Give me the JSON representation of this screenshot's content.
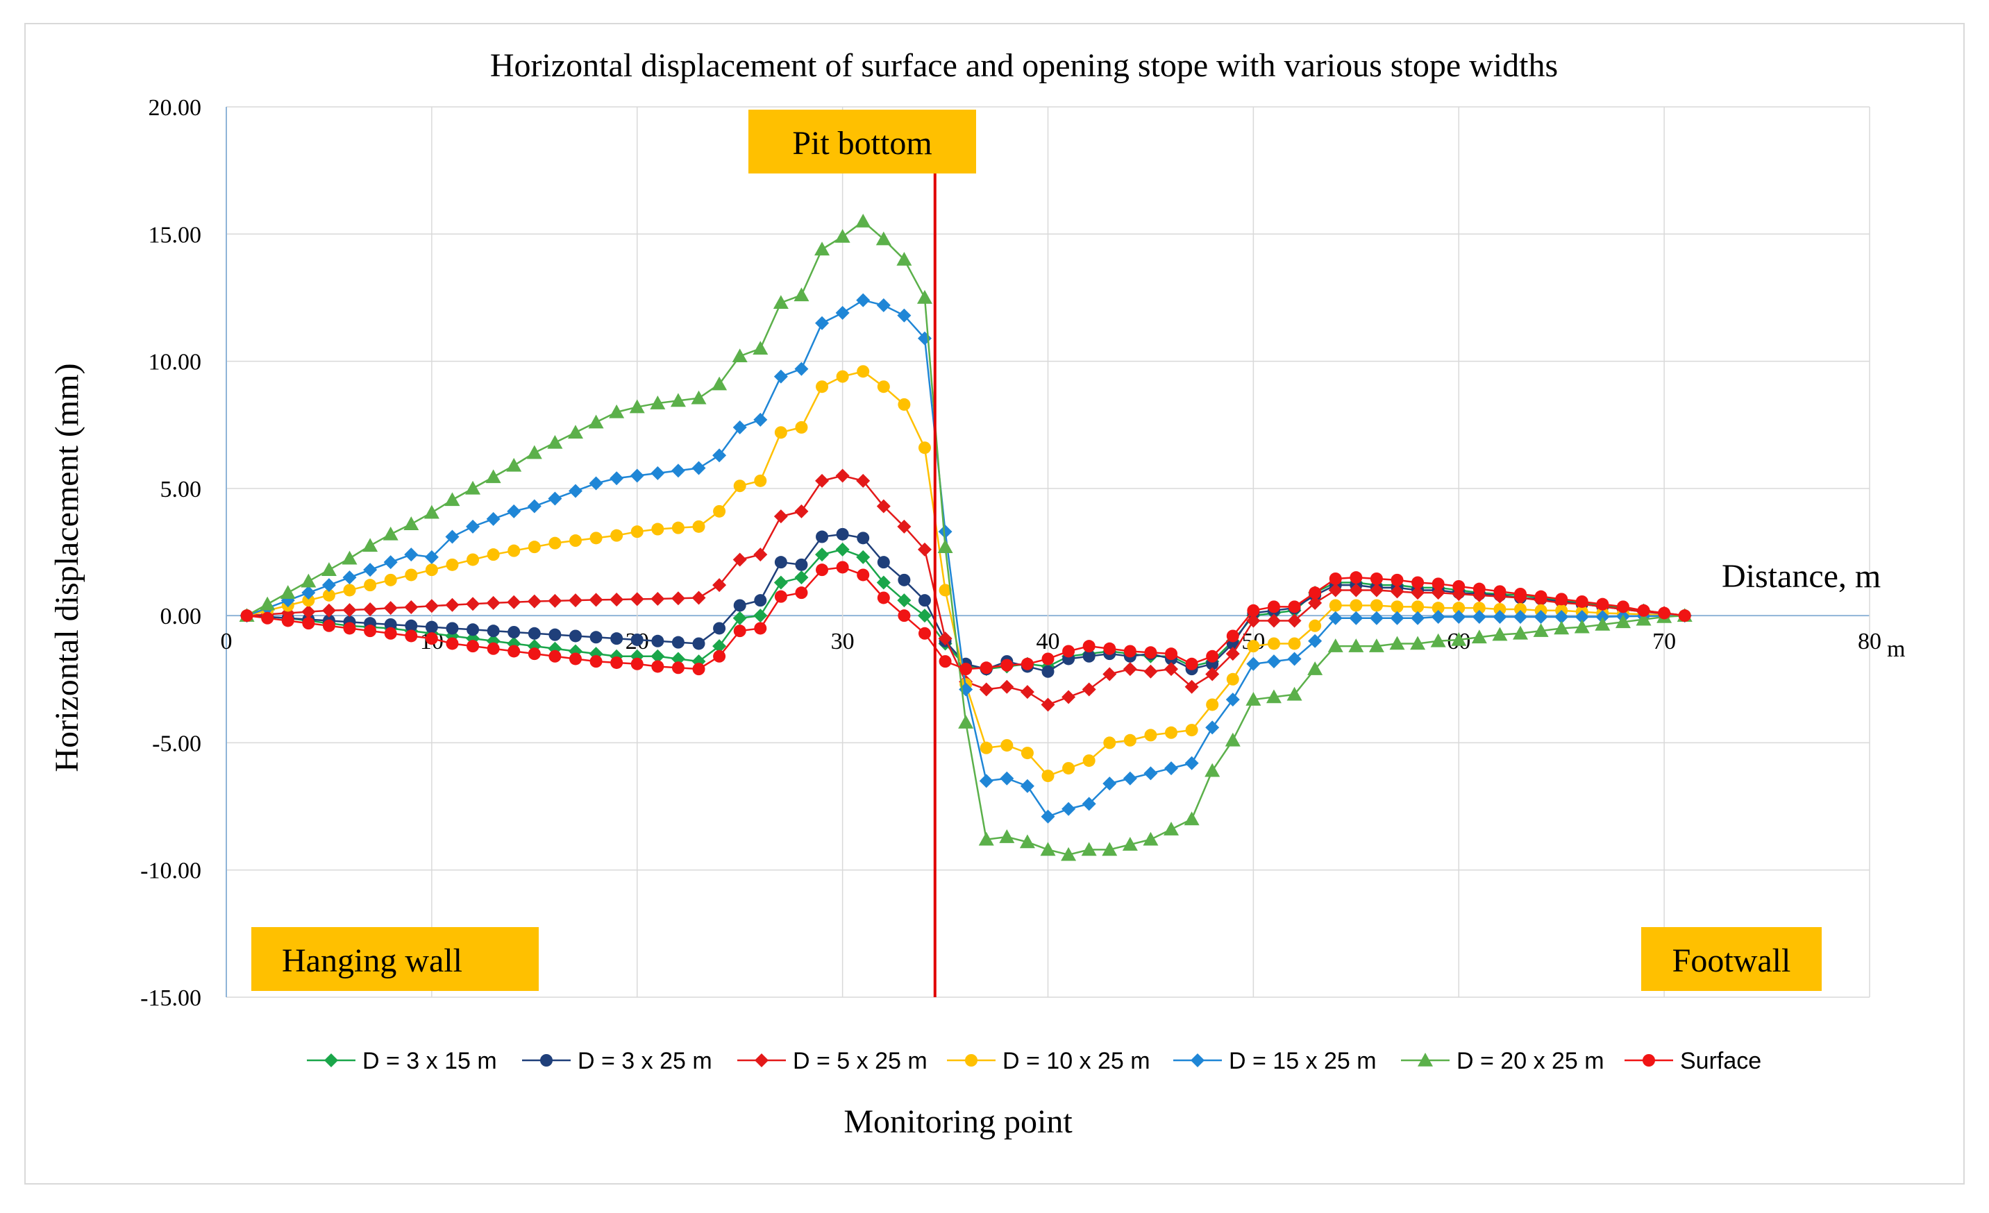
{
  "chart_data": {
    "type": "line",
    "title": "Horizontal displacement of surface and opening stope with various stope widths",
    "xlabel": "Monitoring point",
    "ylabel": "Horizontal displacement (mm)",
    "x_axis_name": "Distance, m",
    "x_unit_label": "m",
    "xlim": [
      0,
      80
    ],
    "ylim": [
      -15,
      20
    ],
    "x_ticks": [
      0,
      10,
      20,
      30,
      40,
      50,
      60,
      70,
      80
    ],
    "y_ticks": [
      -15,
      -10,
      -5,
      0,
      5,
      10,
      15,
      20
    ],
    "x_tick_labels": [
      "0",
      "10",
      "20",
      "30",
      "40",
      "50",
      "60",
      "70",
      "80"
    ],
    "y_tick_labels": [
      "-15.00",
      "-10.00",
      "-5.00",
      "0.00",
      "5.00",
      "10.00",
      "15.00",
      "20.00"
    ],
    "grid": true,
    "legend_position": "bottom",
    "vertical_marker": {
      "x": 34.5,
      "color": "#e00000"
    },
    "annotations": {
      "pit_bottom": "Pit bottom",
      "hanging_wall": "Hanging wall",
      "footwall": "Footwall"
    },
    "series": [
      {
        "name": "D = 3 x 15  m",
        "color": "#1aa64a",
        "marker": "diamond",
        "x": [
          1,
          2,
          3,
          4,
          5,
          6,
          7,
          8,
          9,
          10,
          11,
          12,
          13,
          14,
          15,
          16,
          17,
          18,
          19,
          20,
          21,
          22,
          23,
          24,
          25,
          26,
          27,
          28,
          29,
          30,
          31,
          32,
          33,
          34,
          35,
          36,
          37,
          38,
          39,
          40,
          41,
          42,
          43,
          44,
          45,
          46,
          47,
          48,
          49,
          50,
          51,
          52,
          53,
          54,
          55,
          56,
          57,
          58,
          59,
          60,
          61,
          62,
          63,
          64,
          65,
          66,
          67,
          68,
          69,
          70,
          71
        ],
        "values": [
          0,
          -0.05,
          -0.1,
          -0.2,
          -0.3,
          -0.4,
          -0.45,
          -0.5,
          -0.6,
          -0.7,
          -0.8,
          -0.9,
          -1,
          -1.1,
          -1.2,
          -1.3,
          -1.4,
          -1.5,
          -1.6,
          -1.6,
          -1.6,
          -1.7,
          -1.8,
          -1.2,
          -0.1,
          0,
          1.3,
          1.5,
          2.4,
          2.6,
          2.3,
          1.3,
          0.6,
          0,
          -1.1,
          -2,
          -2.1,
          -2,
          -1.9,
          -2,
          -1.6,
          -1.5,
          -1.4,
          -1.5,
          -1.6,
          -1.6,
          -2,
          -1.8,
          -1,
          0,
          0.1,
          0.2,
          0.9,
          1.3,
          1.3,
          1.2,
          1.2,
          1.1,
          1.1,
          1,
          0.9,
          0.85,
          0.8,
          0.7,
          0.6,
          0.5,
          0.4,
          0.3,
          0.2,
          0.1,
          0
        ]
      },
      {
        "name": "D = 3 x 25 m",
        "color": "#1f3f7a",
        "marker": "circle",
        "x": [
          1,
          2,
          3,
          4,
          5,
          6,
          7,
          8,
          9,
          10,
          11,
          12,
          13,
          14,
          15,
          16,
          17,
          18,
          19,
          20,
          21,
          22,
          23,
          24,
          25,
          26,
          27,
          28,
          29,
          30,
          31,
          32,
          33,
          34,
          35,
          36,
          37,
          38,
          39,
          40,
          41,
          42,
          43,
          44,
          45,
          46,
          47,
          48,
          49,
          50,
          51,
          52,
          53,
          54,
          55,
          56,
          57,
          58,
          59,
          60,
          61,
          62,
          63,
          64,
          65,
          66,
          67,
          68,
          69,
          70,
          71
        ],
        "values": [
          0,
          -0.05,
          -0.1,
          -0.15,
          -0.2,
          -0.25,
          -0.3,
          -0.35,
          -0.4,
          -0.45,
          -0.5,
          -0.55,
          -0.6,
          -0.65,
          -0.7,
          -0.75,
          -0.8,
          -0.85,
          -0.9,
          -0.95,
          -1,
          -1.05,
          -1.1,
          -0.5,
          0.4,
          0.6,
          2.1,
          2,
          3.1,
          3.2,
          3.05,
          2.1,
          1.4,
          0.6,
          -1,
          -1.9,
          -2.1,
          -1.8,
          -2,
          -2.2,
          -1.7,
          -1.6,
          -1.5,
          -1.6,
          -1.5,
          -1.7,
          -2.1,
          -1.9,
          -1.1,
          0.1,
          0.2,
          0.3,
          0.8,
          1.2,
          1.2,
          1.1,
          1.1,
          1,
          1,
          0.9,
          0.85,
          0.8,
          0.7,
          0.65,
          0.55,
          0.45,
          0.35,
          0.25,
          0.15,
          0.08,
          0
        ]
      },
      {
        "name": "D = 5 x 25  m",
        "color": "#e31919",
        "marker": "diamond",
        "x": [
          1,
          2,
          3,
          4,
          5,
          6,
          7,
          8,
          9,
          10,
          11,
          12,
          13,
          14,
          15,
          16,
          17,
          18,
          19,
          20,
          21,
          22,
          23,
          24,
          25,
          26,
          27,
          28,
          29,
          30,
          31,
          32,
          33,
          34,
          35,
          36,
          37,
          38,
          39,
          40,
          41,
          42,
          43,
          44,
          45,
          46,
          47,
          48,
          49,
          50,
          51,
          52,
          53,
          54,
          55,
          56,
          57,
          58,
          59,
          60,
          61,
          62,
          63,
          64,
          65,
          66,
          67,
          68,
          69,
          70,
          71
        ],
        "values": [
          0,
          0.05,
          0.1,
          0.15,
          0.2,
          0.22,
          0.25,
          0.3,
          0.33,
          0.38,
          0.42,
          0.46,
          0.5,
          0.53,
          0.56,
          0.58,
          0.6,
          0.62,
          0.63,
          0.65,
          0.66,
          0.68,
          0.7,
          1.2,
          2.2,
          2.4,
          3.9,
          4.1,
          5.3,
          5.5,
          5.3,
          4.3,
          3.5,
          2.6,
          -0.9,
          -2.6,
          -2.9,
          -2.8,
          -3,
          -3.5,
          -3.2,
          -2.9,
          -2.3,
          -2.1,
          -2.2,
          -2.1,
          -2.8,
          -2.3,
          -1.5,
          -0.2,
          -0.2,
          -0.2,
          0.5,
          1,
          1,
          1,
          0.95,
          0.9,
          0.9,
          0.85,
          0.8,
          0.75,
          0.7,
          0.6,
          0.5,
          0.45,
          0.35,
          0.25,
          0.15,
          0.1,
          0
        ]
      },
      {
        "name": "D = 10 x 25  m",
        "color": "#ffc000",
        "marker": "circle",
        "x": [
          1,
          2,
          3,
          4,
          5,
          6,
          7,
          8,
          9,
          10,
          11,
          12,
          13,
          14,
          15,
          16,
          17,
          18,
          19,
          20,
          21,
          22,
          23,
          24,
          25,
          26,
          27,
          28,
          29,
          30,
          31,
          32,
          33,
          34,
          35,
          36,
          37,
          38,
          39,
          40,
          41,
          42,
          43,
          44,
          45,
          46,
          47,
          48,
          49,
          50,
          51,
          52,
          53,
          54,
          55,
          56,
          57,
          58,
          59,
          60,
          61,
          62,
          63,
          64,
          65,
          66,
          67,
          68,
          69,
          70,
          71
        ],
        "values": [
          0,
          0.2,
          0.4,
          0.6,
          0.8,
          1,
          1.2,
          1.4,
          1.6,
          1.8,
          2,
          2.2,
          2.4,
          2.55,
          2.7,
          2.85,
          2.95,
          3.05,
          3.15,
          3.3,
          3.4,
          3.45,
          3.5,
          4.1,
          5.1,
          5.3,
          7.2,
          7.4,
          9,
          9.4,
          9.6,
          9,
          8.3,
          6.6,
          1,
          -2.7,
          -5.2,
          -5.1,
          -5.4,
          -6.3,
          -6,
          -5.7,
          -5,
          -4.9,
          -4.7,
          -4.6,
          -4.5,
          -3.5,
          -2.5,
          -1.2,
          -1.1,
          -1.1,
          -0.4,
          0.4,
          0.4,
          0.4,
          0.35,
          0.35,
          0.3,
          0.3,
          0.3,
          0.25,
          0.25,
          0.2,
          0.2,
          0.15,
          0.1,
          0.08,
          0.05,
          0.02,
          0
        ]
      },
      {
        "name": "D = 15 x 25  m",
        "color": "#1f86d6",
        "marker": "diamond",
        "x": [
          1,
          2,
          3,
          4,
          5,
          6,
          7,
          8,
          9,
          10,
          11,
          12,
          13,
          14,
          15,
          16,
          17,
          18,
          19,
          20,
          21,
          22,
          23,
          24,
          25,
          26,
          27,
          28,
          29,
          30,
          31,
          32,
          33,
          34,
          35,
          36,
          37,
          38,
          39,
          40,
          41,
          42,
          43,
          44,
          45,
          46,
          47,
          48,
          49,
          50,
          51,
          52,
          53,
          54,
          55,
          56,
          57,
          58,
          59,
          60,
          61,
          62,
          63,
          64,
          65,
          66,
          67,
          68,
          69,
          70,
          71
        ],
        "values": [
          0,
          0.3,
          0.6,
          0.9,
          1.2,
          1.5,
          1.8,
          2.1,
          2.4,
          2.3,
          3.1,
          3.5,
          3.8,
          4.1,
          4.3,
          4.6,
          4.9,
          5.2,
          5.4,
          5.5,
          5.6,
          5.7,
          5.8,
          6.3,
          7.4,
          7.7,
          9.4,
          9.7,
          11.5,
          11.9,
          12.4,
          12.2,
          11.8,
          10.9,
          3.3,
          -2.9,
          -6.5,
          -6.4,
          -6.7,
          -7.9,
          -7.6,
          -7.4,
          -6.6,
          -6.4,
          -6.2,
          -6,
          -5.8,
          -4.4,
          -3.3,
          -1.9,
          -1.8,
          -1.7,
          -1,
          -0.1,
          -0.1,
          -0.1,
          -0.1,
          -0.1,
          -0.05,
          -0.05,
          -0.05,
          -0.05,
          -0.05,
          -0.05,
          -0.05,
          -0.05,
          -0.05,
          -0.03,
          -0.02,
          -0.01,
          0
        ]
      },
      {
        "name": "D = 20 x 25  m",
        "color": "#5bb04a",
        "marker": "triangle",
        "x": [
          1,
          2,
          3,
          4,
          5,
          6,
          7,
          8,
          9,
          10,
          11,
          12,
          13,
          14,
          15,
          16,
          17,
          18,
          19,
          20,
          21,
          22,
          23,
          24,
          25,
          26,
          27,
          28,
          29,
          30,
          31,
          32,
          33,
          34,
          35,
          36,
          37,
          38,
          39,
          40,
          41,
          42,
          43,
          44,
          45,
          46,
          47,
          48,
          49,
          50,
          51,
          52,
          53,
          54,
          55,
          56,
          57,
          58,
          59,
          60,
          61,
          62,
          63,
          64,
          65,
          66,
          67,
          68,
          69,
          70,
          71
        ],
        "values": [
          0,
          0.45,
          0.9,
          1.35,
          1.8,
          2.25,
          2.75,
          3.2,
          3.6,
          4.05,
          4.55,
          5,
          5.45,
          5.9,
          6.4,
          6.8,
          7.2,
          7.6,
          8,
          8.2,
          8.35,
          8.45,
          8.55,
          9.1,
          10.2,
          10.5,
          12.3,
          12.6,
          14.4,
          14.9,
          15.5,
          14.8,
          14,
          12.5,
          2.7,
          -4.2,
          -8.8,
          -8.7,
          -8.9,
          -9.2,
          -9.4,
          -9.2,
          -9.2,
          -9,
          -8.8,
          -8.4,
          -8,
          -6.1,
          -4.9,
          -3.3,
          -3.2,
          -3.1,
          -2.1,
          -1.2,
          -1.2,
          -1.2,
          -1.1,
          -1.1,
          -1,
          -0.95,
          -0.85,
          -0.75,
          -0.7,
          -0.6,
          -0.5,
          -0.45,
          -0.35,
          -0.25,
          -0.15,
          -0.05,
          0
        ]
      },
      {
        "name": "Surface",
        "color": "#f01414",
        "marker": "circle",
        "x": [
          1,
          2,
          3,
          4,
          5,
          6,
          7,
          8,
          9,
          10,
          11,
          12,
          13,
          14,
          15,
          16,
          17,
          18,
          19,
          20,
          21,
          22,
          23,
          24,
          25,
          26,
          27,
          28,
          29,
          30,
          31,
          32,
          33,
          34,
          35,
          36,
          37,
          38,
          39,
          40,
          41,
          42,
          43,
          44,
          45,
          46,
          47,
          48,
          49,
          50,
          51,
          52,
          53,
          54,
          55,
          56,
          57,
          58,
          59,
          60,
          61,
          62,
          63,
          64,
          65,
          66,
          67,
          68,
          69,
          70,
          71
        ],
        "values": [
          0,
          -0.1,
          -0.2,
          -0.3,
          -0.4,
          -0.5,
          -0.6,
          -0.7,
          -0.8,
          -0.9,
          -1.1,
          -1.2,
          -1.3,
          -1.4,
          -1.5,
          -1.6,
          -1.7,
          -1.8,
          -1.85,
          -1.9,
          -2,
          -2.05,
          -2.1,
          -1.6,
          -0.6,
          -0.5,
          0.75,
          0.9,
          1.8,
          1.9,
          1.6,
          0.7,
          0,
          -0.7,
          -1.8,
          -2.1,
          -2.05,
          -1.95,
          -1.9,
          -1.7,
          -1.4,
          -1.2,
          -1.3,
          -1.4,
          -1.45,
          -1.5,
          -1.9,
          -1.6,
          -0.8,
          0.2,
          0.35,
          0.35,
          0.9,
          1.45,
          1.5,
          1.45,
          1.4,
          1.3,
          1.25,
          1.15,
          1.05,
          0.95,
          0.85,
          0.75,
          0.65,
          0.55,
          0.45,
          0.35,
          0.2,
          0.1,
          0
        ]
      }
    ]
  }
}
